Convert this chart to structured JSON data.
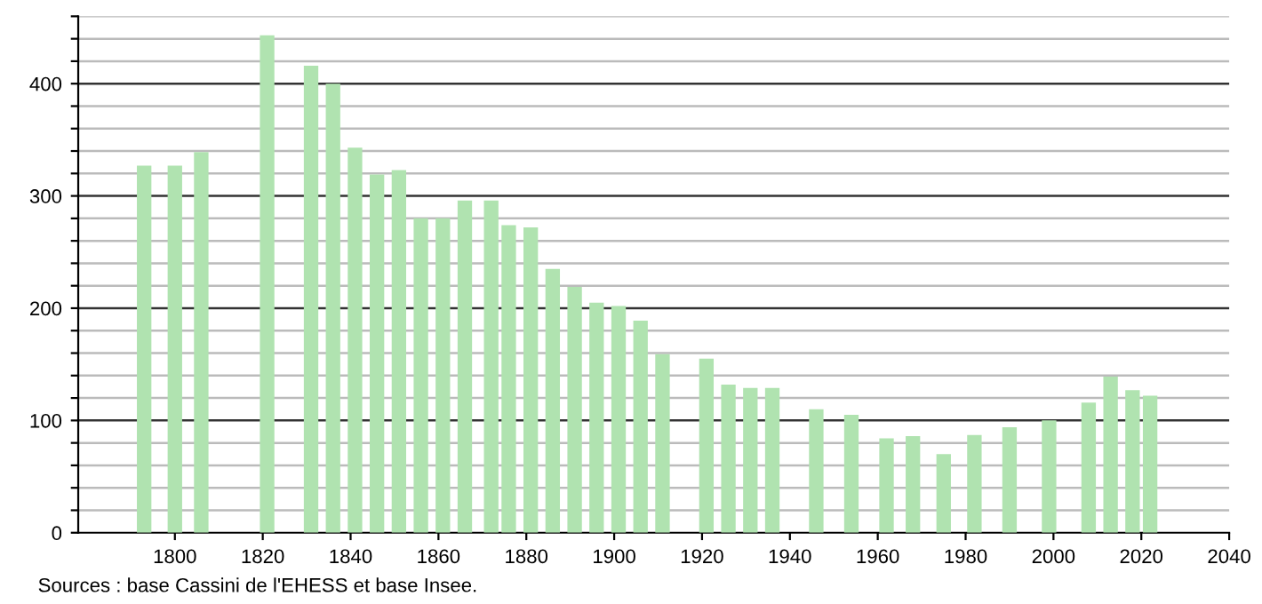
{
  "chart_data": {
    "type": "bar",
    "x": [
      1793,
      1800,
      1806,
      1821,
      1831,
      1836,
      1841,
      1846,
      1851,
      1856,
      1861,
      1866,
      1872,
      1876,
      1881,
      1886,
      1891,
      1896,
      1901,
      1906,
      1911,
      1921,
      1926,
      1931,
      1936,
      1946,
      1954,
      1962,
      1968,
      1975,
      1982,
      1990,
      1999,
      2008,
      2013,
      2018,
      2022
    ],
    "values": [
      327,
      327,
      339,
      443,
      416,
      400,
      343,
      319,
      323,
      280,
      280,
      296,
      296,
      274,
      272,
      235,
      219,
      205,
      202,
      189,
      159,
      155,
      132,
      129,
      129,
      110,
      105,
      84,
      86,
      70,
      87,
      94,
      100,
      116,
      139,
      127,
      122
    ],
    "color": "#b0e3b0",
    "xlim": [
      1778,
      2040
    ],
    "xticks": [
      1800,
      1820,
      1840,
      1860,
      1880,
      1900,
      1920,
      1940,
      1960,
      1980,
      2000,
      2020,
      2040
    ],
    "ylim": [
      0,
      460
    ],
    "yticks": [
      0,
      {
        "value": 20,
        "label": null
      },
      {
        "value": 40,
        "label": null
      },
      {
        "value": 60,
        "label": null
      },
      {
        "value": 80,
        "label": null
      },
      100,
      {
        "value": 120,
        "label": null
      },
      {
        "value": 140,
        "label": null
      },
      {
        "value": 160,
        "label": null
      },
      {
        "value": 180,
        "label": null
      },
      200,
      {
        "value": 220,
        "label": null
      },
      {
        "value": 240,
        "label": null
      },
      {
        "value": 260,
        "label": null
      },
      {
        "value": 280,
        "label": null
      },
      300,
      {
        "value": 320,
        "label": null
      },
      {
        "value": 340,
        "label": null
      },
      {
        "value": 360,
        "label": null
      },
      {
        "value": 380,
        "label": null
      },
      400,
      {
        "value": 420,
        "label": null
      },
      {
        "value": 440,
        "label": null
      },
      {
        "value": 460,
        "label": null
      }
    ],
    "grid": "y",
    "annotations": [
      "Sources : base Cassini de l'EHESS et base Insee."
    ]
  }
}
